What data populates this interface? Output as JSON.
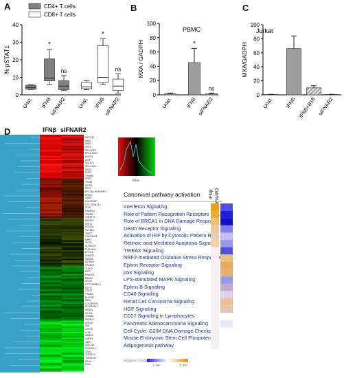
{
  "panels": {
    "A": {
      "letter": "A",
      "chart_data": {
        "type": "box",
        "ylabel": "% pSTAT1",
        "ylim": [
          0,
          40
        ],
        "yticks": [
          0,
          10,
          20,
          30,
          40
        ],
        "legend": [
          {
            "name": "CD4+ T cells",
            "color": "#808080"
          },
          {
            "name": "CD8+ T cells",
            "color": "#ffffff"
          }
        ],
        "legend_position": "top",
        "categories": [
          "Unst.",
          "IFNß",
          "siFNAR2",
          "Unst.",
          "IFNß",
          "siFNAR2"
        ],
        "boxes": [
          {
            "series": "CD4+ T cells",
            "category": "Unst.",
            "min": 3,
            "q1": 3.2,
            "median": 4.2,
            "q3": 5.5,
            "max": 5.8
          },
          {
            "series": "CD4+ T cells",
            "category": "IFNß",
            "min": 6,
            "q1": 8,
            "median": 9.5,
            "q3": 20.5,
            "max": 26,
            "annotation": "*"
          },
          {
            "series": "CD4+ T cells",
            "category": "siFNAR2",
            "min": 2.5,
            "q1": 3,
            "median": 5,
            "q3": 8,
            "max": 11,
            "annotation": "ns"
          },
          {
            "series": "CD8+ T cells",
            "category": "Unst.",
            "min": 3,
            "q1": 3.5,
            "median": 4.5,
            "q3": 7,
            "max": 8
          },
          {
            "series": "CD8+ T cells",
            "category": "IFNß",
            "min": 6,
            "q1": 7,
            "median": 10,
            "q3": 28,
            "max": 32,
            "annotation": "*"
          },
          {
            "series": "CD8+ T cells",
            "category": "siFNAR2",
            "min": 1,
            "q1": 2.5,
            "median": 5,
            "q3": 9,
            "max": 12,
            "annotation": "ns"
          }
        ]
      }
    },
    "B": {
      "letter": "B",
      "chart_data": {
        "type": "bar",
        "title": "PBMC",
        "ylabel": "MXA / GADPH",
        "ylim": [
          0,
          100
        ],
        "yticks": [
          0,
          20,
          40,
          60,
          80,
          100
        ],
        "categories": [
          "Unst.",
          "IFNß",
          "siFNAR2"
        ],
        "values": [
          1.5,
          45,
          1.5
        ],
        "errors": [
          1,
          20,
          1
        ],
        "annotations": [
          "",
          "*",
          "ns"
        ],
        "bar_color": "#9e9e9e"
      }
    },
    "C": {
      "letter": "C",
      "chart_data": {
        "type": "bar",
        "title": "Jurkat",
        "ylabel": "MXA/GADPH",
        "ylim": [
          0,
          100
        ],
        "yticks": [
          0,
          20,
          40,
          60,
          80,
          100
        ],
        "categories": [
          "Unst.",
          "IFNß",
          "IFNß+B18",
          "siFNAR2"
        ],
        "values": [
          0.5,
          66,
          10,
          0.5
        ],
        "errors": [
          0.3,
          18,
          3,
          0.3
        ],
        "bar_fills": [
          "#9e9e9e",
          "#9e9e9e",
          "hatch",
          "#9e9e9e"
        ]
      }
    },
    "D": {
      "letter": "D",
      "heatmap_columns": [
        "IFNβ",
        "sIFNAR2"
      ],
      "genes": [
        "MEGF11",
        "HBA1",
        "HBA2",
        "SPP1",
        "RACGAP1",
        "RP11-1052…",
        "ANOS1",
        "ATHP",
        "MALAT1",
        "RP11-105…",
        "HES4",
        "ENO3",
        "TRIM58",
        "SPI60",
        "TRIM5",
        "IFITM1",
        "IFIT3",
        "RPL39A-HNRNPH2",
        "SPI00",
        "OSER",
        "LGALS3BP",
        "CTC-452N13.2",
        "TLN2",
        "SAMHD1",
        "TRIM55",
        "TNFSF10",
        "PARP12",
        "STAT1",
        "DDX60L",
        "OLFML2",
        "TIRIC7",
        "LINC01093",
        "MRP3",
        "ISG20",
        "KLHDC7B",
        "PLEKHA4",
        "EPSTI1",
        "ZNFAG2",
        "HERC6",
        "EIF2AK2",
        "TRANK1",
        "TLDC2",
        "IFIT2",
        "RNASE4",
        "DDX60",
        "SP110",
        "CTC-2005E4.2",
        "RTP4",
        "STAT2",
        "TRAN2I",
        "PLSCR1",
        "NEC1",
        "LOC399766",
        "AC005150.1",
        "HERC5",
        "OTXDL",
        "TRIM5A",
        "PARP10",
        "APOL6",
        "IFI6",
        "USP18",
        "LY6E",
        "SAMD9",
        "CMPK2",
        "GBP1",
        "NT5C3A",
        "ZC3HAV1",
        "OAS1",
        "TNFSF10",
        "TMEM140",
        "IFI44L",
        "ITG2"
      ],
      "pathway_title": "Canonical pathway activation",
      "pathway_columns": [
        "IFNβ",
        "sIFNAR2"
      ],
      "pathways": [
        "Interferon Signaling",
        "Role of Pattern Recognition Receptors in ...",
        "Role of BRCA1 in DNA Damage Response",
        "Death Receptor Signaling",
        "Activation of IRF by Cytosolic Pattern Rec...",
        "Retinoic acid Mediated Apoptosis Signaling",
        "TWEAK Signaling",
        "NRF2-mediated Oxidative Stress Response",
        "Ephrin Receptor Signaling",
        "p53 Signaling",
        "LPS-stimulated MAPK Signaling",
        "Ephrin B Signaling",
        "CD40 Signaling",
        "Renal Cell Carcinoma Signaling",
        "HGF Signaling",
        "CD27 Signaling in Lymphocytes",
        "Pancreatic Adenocarcinoma Signaling",
        "Cell Cycle: G2/M DNA Damage Checkpoi...",
        "Mouse Embryonic Stem Cell Pluripotency",
        "Adipogenesis pathway"
      ],
      "pathway_colors_ifnb": [
        "#e8a020",
        "#e8b030",
        "#f0c070",
        "#f0c8a0",
        "#e8d0b8",
        "#f2d2a8",
        "#f8f0f0",
        "#f8f0f0",
        "#f8f0f0",
        "#f8f0f0",
        "#f8f0f0",
        "#f8f0f0",
        "#f8f0f0",
        "#f8f0f0",
        "#f8f0f0",
        "#f8f0f0",
        "#f8f0f0",
        "#f8f0f0",
        "#f8f0f0",
        "#f8f0f0"
      ],
      "pathway_colors_sifnar2": [
        "#5050e0",
        "#2020d8",
        "#1010c8",
        "#8080e8",
        "#c0c0f0",
        "#9898e8",
        "#5050e0",
        "#e8c080",
        "#eaa860",
        "#e8b070",
        "#9898e8",
        "#c8a8d0",
        "#ddd0e8",
        "#f0c090",
        "#e0c8b0",
        "#ffffff",
        "#e8e8f8",
        "#ffffff",
        "#ffffff",
        "#ffffff"
      ],
      "zscore_legend": {
        "label": "Activation z-score",
        "min": "-1.250",
        "max": "2.357",
        "colors": [
          "#2020d8",
          "#ffffff",
          "#e89020"
        ]
      },
      "density_key_label": "Value"
    }
  }
}
